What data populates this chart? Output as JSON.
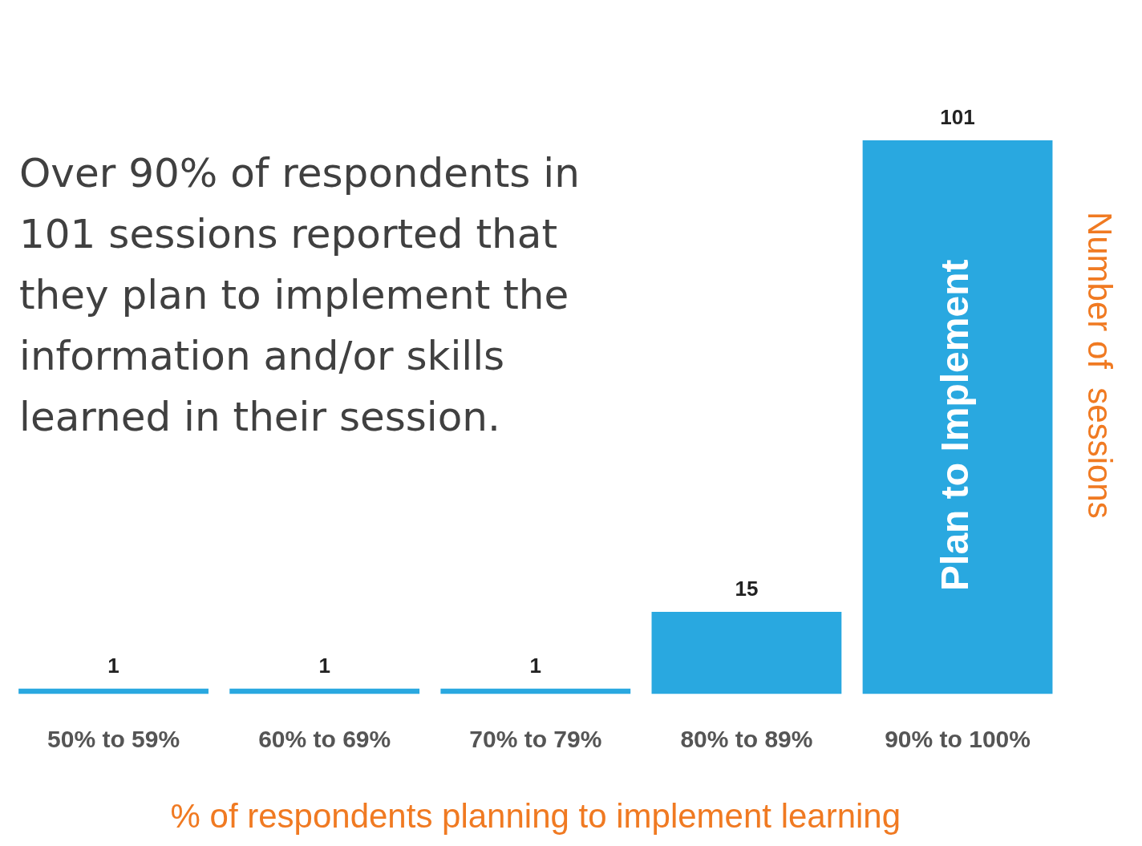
{
  "chart_data": {
    "type": "bar",
    "categories": [
      "50% to 59%",
      "60% to 69%",
      "70% to 79%",
      "80% to 89%",
      "90% to 100%"
    ],
    "values": [
      1,
      1,
      1,
      15,
      101
    ],
    "color": "#29a8e0",
    "data_labels": true,
    "xlabel": "% of respondents planning to implement learning",
    "ylabel": "Number of  sessions",
    "annotations": [
      "Over 90% of respondents in 101 sessions reported that they plan to implement the information and/or skills learned in their session.",
      "Plan to Implement"
    ],
    "grid": false,
    "legend": false
  }
}
